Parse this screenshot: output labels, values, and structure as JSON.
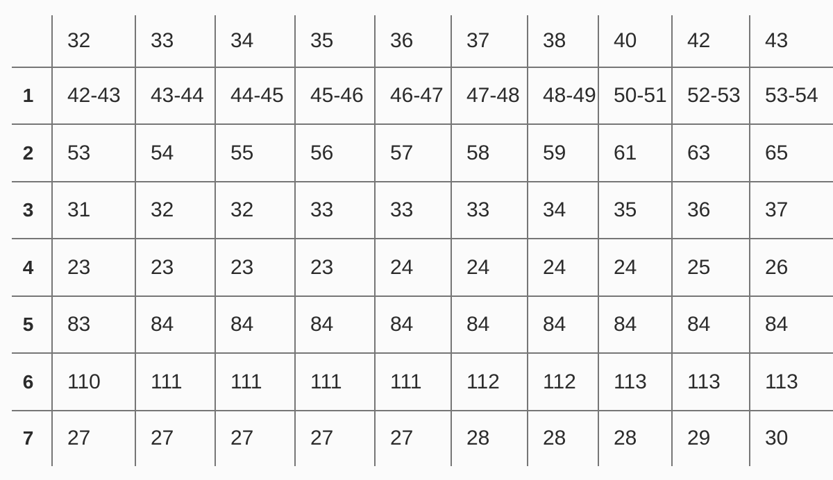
{
  "chart_data": {
    "type": "table",
    "columns": [
      "",
      "32",
      "33",
      "34",
      "35",
      "36",
      "37",
      "38",
      "40",
      "42",
      "43"
    ],
    "rows": [
      {
        "label": "1",
        "values": [
          "42-43",
          "43-44",
          "44-45",
          "45-46",
          "46-47",
          "47-48",
          "48-49",
          "50-51",
          "52-53",
          "53-54"
        ]
      },
      {
        "label": "2",
        "values": [
          "53",
          "54",
          "55",
          "56",
          "57",
          "58",
          "59",
          "61",
          "63",
          "65"
        ]
      },
      {
        "label": "3",
        "values": [
          "31",
          "32",
          "32",
          "33",
          "33",
          "33",
          "34",
          "35",
          "36",
          "37"
        ]
      },
      {
        "label": "4",
        "values": [
          "23",
          "23",
          "23",
          "23",
          "24",
          "24",
          "24",
          "24",
          "25",
          "26"
        ]
      },
      {
        "label": "5",
        "values": [
          "83",
          "84",
          "84",
          "84",
          "84",
          "84",
          "84",
          "84",
          "84",
          "84"
        ]
      },
      {
        "label": "6",
        "values": [
          "110",
          "111",
          "111",
          "111",
          "111",
          "112",
          "112",
          "113",
          "113",
          "113"
        ]
      },
      {
        "label": "7",
        "values": [
          "27",
          "27",
          "27",
          "27",
          "27",
          "28",
          "28",
          "28",
          "29",
          "30"
        ]
      }
    ]
  },
  "colors": {
    "grid_line": "#767676",
    "text": "#2b2b2b",
    "background": "#fbfbfb"
  }
}
